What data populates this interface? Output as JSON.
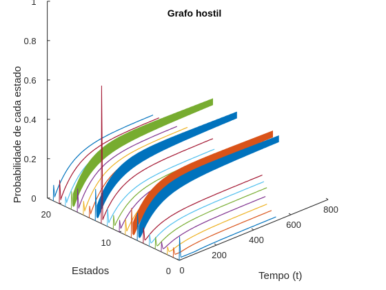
{
  "chart_data": {
    "type": "line",
    "title": "Grafo hostil",
    "xlabel": "Tempo (t)",
    "ylabel": "Estados",
    "zlabel": "Probabilidade de cada estado",
    "x_ticks": [
      "0",
      "200",
      "400",
      "600",
      "800"
    ],
    "y_ticks": [
      "0",
      "10",
      "20"
    ],
    "z_ticks": [
      "0",
      "0.2",
      "0.4",
      "0.6",
      "0.8",
      "1"
    ],
    "xlim": [
      0,
      800
    ],
    "ylim": [
      0,
      22
    ],
    "zlim": [
      0,
      1
    ],
    "grid": false,
    "colors": [
      "#0072BD",
      "#D95319",
      "#EDB120",
      "#7E2F8E",
      "#77AC30",
      "#4DBEEE",
      "#A2142F"
    ],
    "states": [
      {
        "state": 1,
        "t_end": 520,
        "spike": 0.12,
        "band": 0.0,
        "final": 0.02
      },
      {
        "state": 2,
        "t_end": 530,
        "spike": 0.05,
        "band": 0.0,
        "final": 0.035
      },
      {
        "state": 3,
        "t_end": 540,
        "spike": 0.04,
        "band": 0.0,
        "final": 0.05
      },
      {
        "state": 4,
        "t_end": 560,
        "spike": 0.05,
        "band": 0.0,
        "final": 0.065
      },
      {
        "state": 5,
        "t_end": 600,
        "spike": 0.06,
        "band": 0.0,
        "final": 0.08
      },
      {
        "state": 6,
        "t_end": 620,
        "spike": 0.06,
        "band": 0.0,
        "final": 0.09
      },
      {
        "state": 7,
        "t_end": 640,
        "spike": 0.08,
        "band": 0.0,
        "final": 0.1
      },
      {
        "state": 8,
        "t_end": 760,
        "spike": 0.14,
        "band": 0.05,
        "final": 0.21
      },
      {
        "state": 9,
        "t_end": 760,
        "spike": 0.15,
        "band": 0.05,
        "final": 0.22
      },
      {
        "state": 10,
        "t_end": 660,
        "spike": 0.08,
        "band": 0.0,
        "final": 0.18
      },
      {
        "state": 11,
        "t_end": 620,
        "spike": 0.06,
        "band": 0.0,
        "final": 0.17
      },
      {
        "state": 12,
        "t_end": 600,
        "spike": 0.07,
        "band": 0.0,
        "final": 0.17
      },
      {
        "state": 13,
        "t_end": 580,
        "spike": 0.09,
        "band": 0.0,
        "final": 0.17
      },
      {
        "state": 14,
        "t_end": 600,
        "spike": 0.7,
        "band": 0.0,
        "final": 0.2
      },
      {
        "state": 15,
        "t_end": 760,
        "spike": 0.16,
        "band": 0.05,
        "final": 0.23
      },
      {
        "state": 16,
        "t_end": 580,
        "spike": 0.06,
        "band": 0.0,
        "final": 0.23
      },
      {
        "state": 17,
        "t_end": 560,
        "spike": 0.07,
        "band": 0.0,
        "final": 0.23
      },
      {
        "state": 18,
        "t_end": 540,
        "spike": 0.12,
        "band": 0.0,
        "final": 0.23
      },
      {
        "state": 19,
        "t_end": 760,
        "spike": 0.09,
        "band": 0.05,
        "final": 0.24
      },
      {
        "state": 20,
        "t_end": 540,
        "spike": 0.05,
        "band": 0.0,
        "final": 0.23
      },
      {
        "state": 21,
        "t_end": 540,
        "spike": 0.12,
        "band": 0.0,
        "final": 0.23
      },
      {
        "state": 22,
        "t_end": 540,
        "spike": 0.08,
        "band": 0.0,
        "final": 0.23
      }
    ]
  }
}
